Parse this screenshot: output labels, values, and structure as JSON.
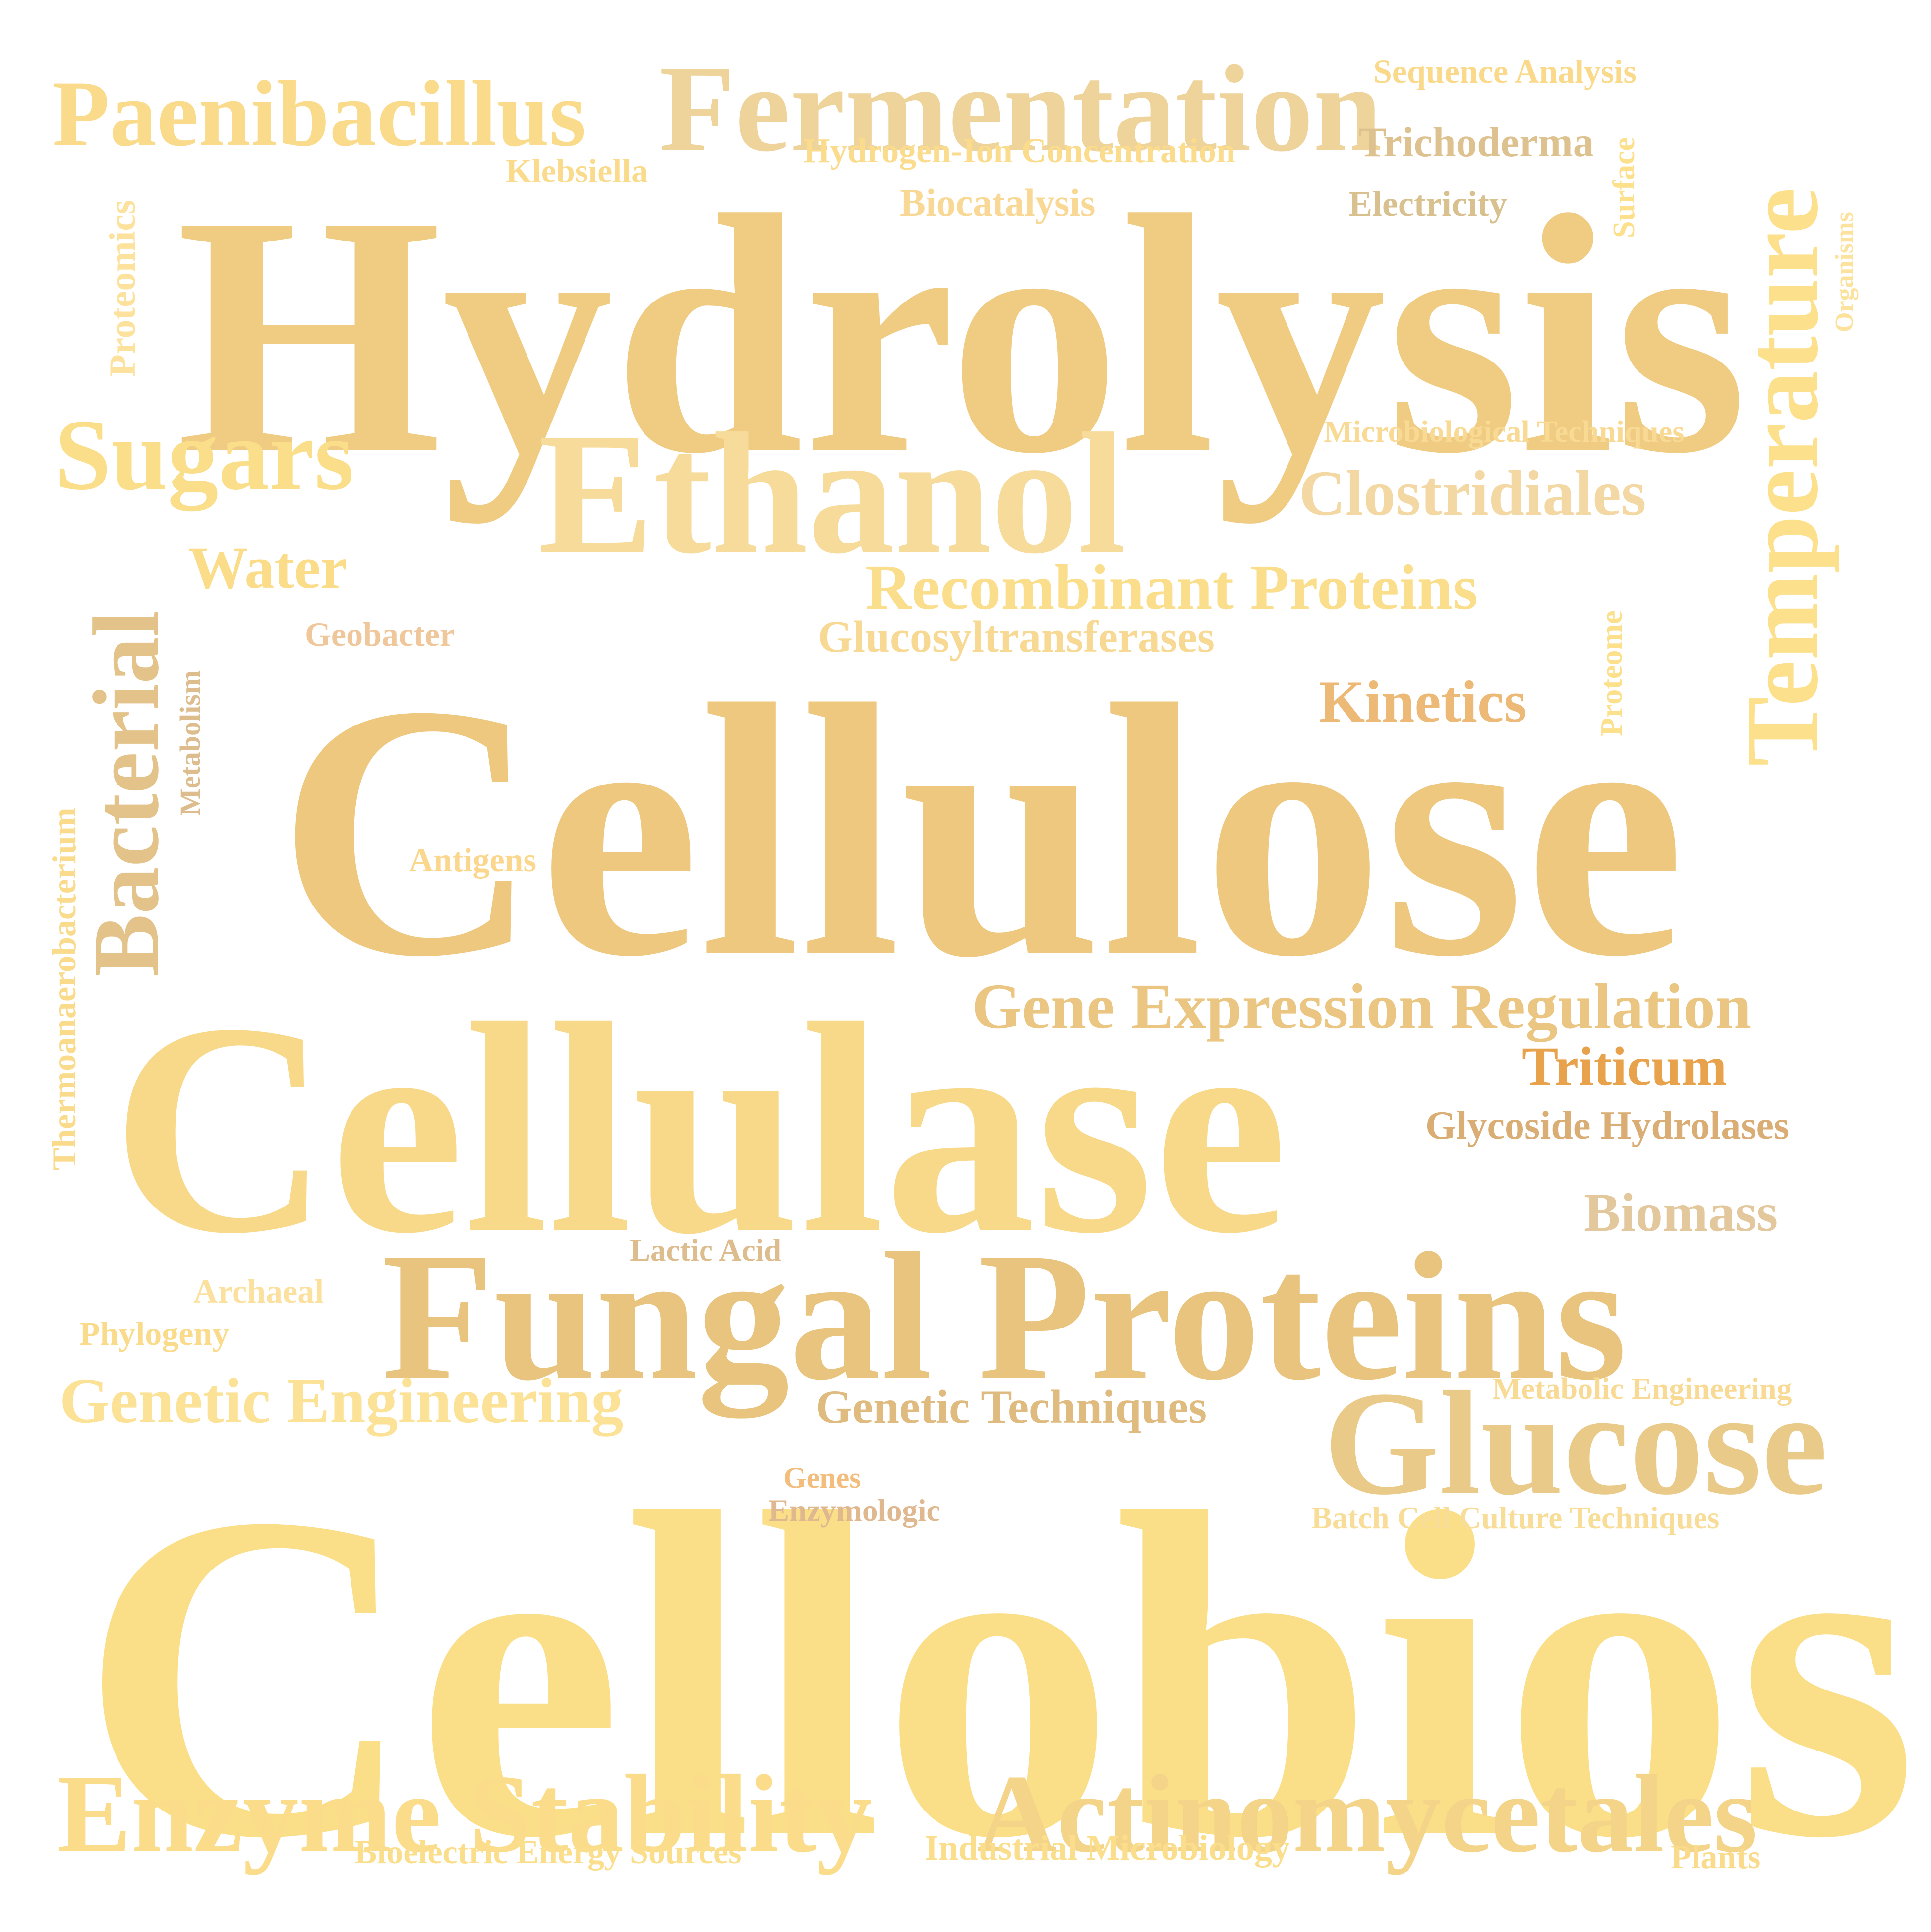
{
  "words": [
    {
      "id": "cellobiose",
      "text": "Cellobiose",
      "color": "#FBDF88"
    },
    {
      "id": "hydrolysis",
      "text": "Hydrolysis",
      "color": "#F0CC83"
    },
    {
      "id": "cellulose",
      "text": "Cellulose",
      "color": "#EEC87F"
    },
    {
      "id": "cellulase",
      "text": "Cellulase",
      "color": "#F8D98A"
    },
    {
      "id": "fungal-proteins",
      "text": "Fungal Proteins",
      "color": "#E8C47E"
    },
    {
      "id": "ethanol",
      "text": "Ethanol",
      "color": "#F6DB9A"
    },
    {
      "id": "fermentation",
      "text": "Fermentation",
      "color": "#EED39A"
    },
    {
      "id": "glucose",
      "text": "Glucose",
      "color": "#EACA88"
    },
    {
      "id": "temperature",
      "text": "Temperature",
      "color": "#FCE08C"
    },
    {
      "id": "enzyme-stability",
      "text": "Enzyme Stability",
      "color": "#FBDC8A"
    },
    {
      "id": "actinomycetales",
      "text": "Actinomycetales",
      "color": "#F4D488"
    },
    {
      "id": "paenibacillus",
      "text": "Paenibacillus",
      "color": "#FADB8B"
    },
    {
      "id": "sugars",
      "text": "Sugars",
      "color": "#FBDE89"
    },
    {
      "id": "bacterial",
      "text": "Bacterial",
      "color": "#E3C38A"
    },
    {
      "id": "gene-expression-regulation",
      "text": "Gene Expression Regulation",
      "color": "#EBC682"
    },
    {
      "id": "genetic-engineering",
      "text": "Genetic Engineering",
      "color": "#FCE297"
    },
    {
      "id": "recombinant-proteins",
      "text": "Recombinant Proteins",
      "color": "#FBDE8C"
    },
    {
      "id": "clostridiales",
      "text": "Clostridiales",
      "color": "#F4D8A4"
    },
    {
      "id": "kinetics",
      "text": "Kinetics",
      "color": "#EDB977"
    },
    {
      "id": "water",
      "text": "Water",
      "color": "#FADC89"
    },
    {
      "id": "triticum",
      "text": "Triticum",
      "color": "#E9A24C"
    },
    {
      "id": "biomass",
      "text": "Biomass",
      "color": "#E3C79D"
    },
    {
      "id": "genetic-techniques",
      "text": "Genetic Techniques",
      "color": "#DFBB80"
    },
    {
      "id": "glucosyltransferases",
      "text": "Glucosyltransferases",
      "color": "#F7D993"
    },
    {
      "id": "glycoside-hydrolases",
      "text": "Glycoside Hydrolases",
      "color": "#D9AD73"
    },
    {
      "id": "trichoderma",
      "text": "Trichoderma",
      "color": "#DDC290"
    },
    {
      "id": "hydrogen-ion-concentration",
      "text": "Hydrogen-Ion Concentration",
      "color": "#FBDB8C"
    },
    {
      "id": "sequence-analysis",
      "text": "Sequence Analysis",
      "color": "#FAD98A"
    },
    {
      "id": "biocatalysis",
      "text": "Biocatalysis",
      "color": "#F8D894"
    },
    {
      "id": "electricity",
      "text": "Electricity",
      "color": "#D9C08F"
    },
    {
      "id": "klebsiella",
      "text": "Klebsiella",
      "color": "#FADB8C"
    },
    {
      "id": "microbiological-techniques",
      "text": "Microbiological Techniques",
      "color": "#F8DA94"
    },
    {
      "id": "geobacter",
      "text": "Geobacter",
      "color": "#F0C79B"
    },
    {
      "id": "antigens",
      "text": "Antigens",
      "color": "#FBD78E"
    },
    {
      "id": "lactic-acid",
      "text": "Lactic Acid",
      "color": "#DDBC8E"
    },
    {
      "id": "archaeal",
      "text": "Archaeal",
      "color": "#FBE09E"
    },
    {
      "id": "phylogeny",
      "text": "Phylogeny",
      "color": "#FADB8B"
    },
    {
      "id": "metabolic-engineering",
      "text": "Metabolic Engineering",
      "color": "#F8DA94"
    },
    {
      "id": "genes",
      "text": "Genes",
      "color": "#F3BD7E"
    },
    {
      "id": "enzymologic",
      "text": "Enzymologic",
      "color": "#E0B88F"
    },
    {
      "id": "batch-cell-culture-techniques",
      "text": "Batch Cell Culture Techniques",
      "color": "#F8DD98"
    },
    {
      "id": "bioelectric-energy-sources",
      "text": "Bioelectric Energy Sources",
      "color": "#FBDE8C"
    },
    {
      "id": "industrial-microbiology",
      "text": "Industrial Microbiology",
      "color": "#FBDE8C"
    },
    {
      "id": "plants",
      "text": "Plants",
      "color": "#FADB8B"
    },
    {
      "id": "proteomics",
      "text": "Proteomics",
      "color": "#FCE29C"
    },
    {
      "id": "thermoanaerobacterium",
      "text": "Thermoanaerobacterium",
      "color": "#FADB8C"
    },
    {
      "id": "metabolism",
      "text": "Metabolism",
      "color": "#DDBC8E"
    },
    {
      "id": "surface",
      "text": "Surface",
      "color": "#FCE08C"
    },
    {
      "id": "organisms",
      "text": "Organisms",
      "color": "#FCE29C"
    },
    {
      "id": "proteome",
      "text": "Proteome",
      "color": "#FCE08C"
    }
  ]
}
